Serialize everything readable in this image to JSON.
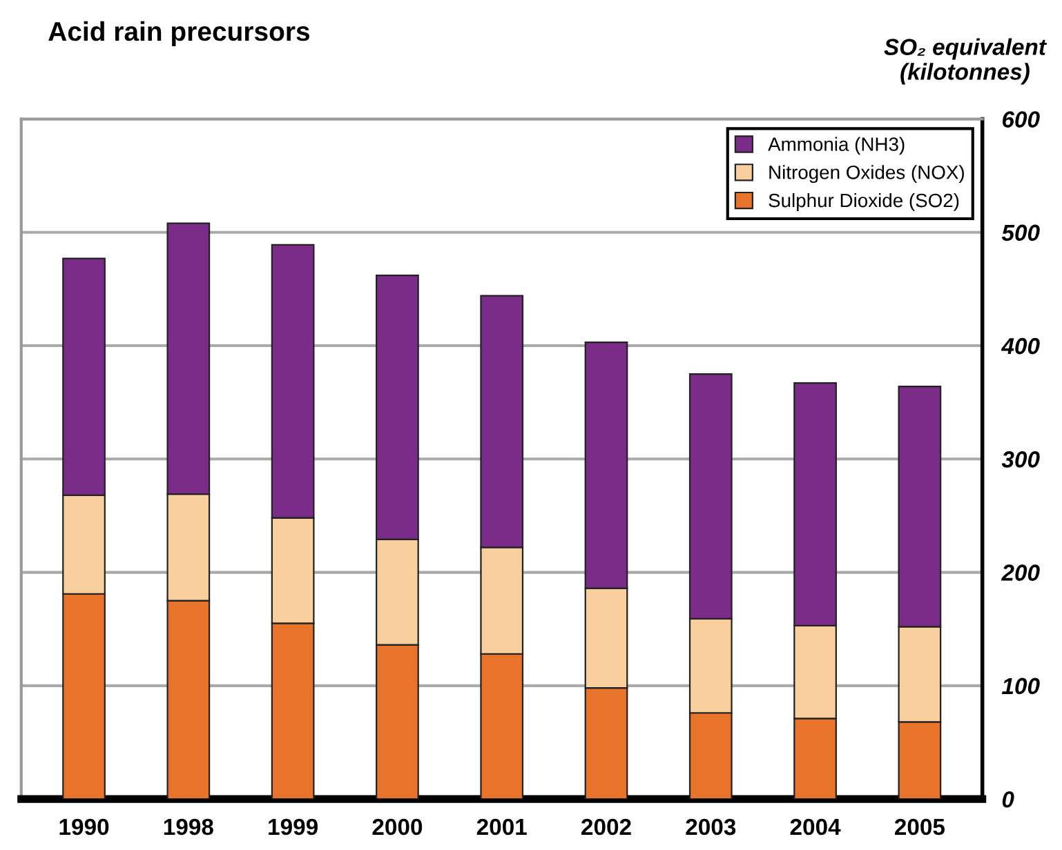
{
  "chart_data": {
    "type": "bar",
    "stacked": true,
    "title": "Acid rain precursors",
    "ylabel": "SO₂ equivalent\n(kilotonnes)",
    "categories": [
      "1990",
      "1998",
      "1999",
      "2000",
      "2001",
      "2002",
      "2003",
      "2004",
      "2005"
    ],
    "series": [
      {
        "name": "Sulphur Dioxide (SO2)",
        "color": "#e8742c",
        "values": [
          181,
          175,
          155,
          136,
          128,
          98,
          76,
          71,
          68
        ]
      },
      {
        "name": "Nitrogen Oxides (NOX)",
        "color": "#f9cf9d",
        "values": [
          87,
          94,
          93,
          93,
          94,
          88,
          83,
          82,
          84
        ]
      },
      {
        "name": "Ammonia (NH3)",
        "color": "#7b2b88",
        "values": [
          209,
          239,
          241,
          233,
          222,
          217,
          216,
          214,
          212
        ]
      }
    ],
    "ylim": [
      0,
      600
    ],
    "yticks": [
      0,
      100,
      200,
      300,
      400,
      500,
      600
    ],
    "grid": "y",
    "legend": "top right"
  }
}
